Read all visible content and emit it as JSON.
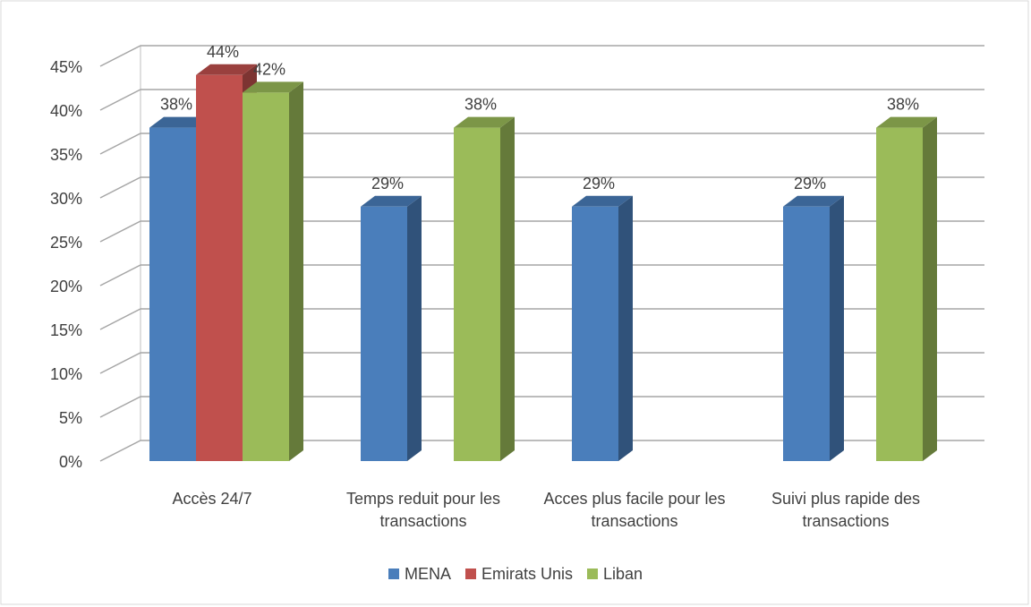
{
  "chart_data": {
    "type": "bar3d",
    "categories": [
      "Accès 24/7",
      "Temps reduit pour les transactions",
      "Acces plus facile pour les transactions",
      "Suivi plus rapide des transactions"
    ],
    "series": [
      {
        "name": "MENA",
        "color": "#4a7ebb",
        "values": [
          38,
          29,
          29,
          29
        ],
        "value_labels": [
          "38%",
          "29%",
          "29%",
          "29%"
        ]
      },
      {
        "name": "Emirats Unis",
        "color": "#c0504d",
        "values": [
          44,
          null,
          null,
          null
        ],
        "value_labels": [
          "44%",
          null,
          null,
          null
        ]
      },
      {
        "name": "Liban",
        "color": "#9bbb59",
        "values": [
          42,
          38,
          null,
          38
        ],
        "value_labels": [
          "42%",
          "38%",
          null,
          "38%"
        ]
      }
    ],
    "ylim": [
      0,
      45
    ],
    "yticks": [
      {
        "value": 0,
        "label": "0%"
      },
      {
        "value": 5,
        "label": "5%"
      },
      {
        "value": 10,
        "label": "10%"
      },
      {
        "value": 15,
        "label": "15%"
      },
      {
        "value": 20,
        "label": "20%"
      },
      {
        "value": 25,
        "label": "25%"
      },
      {
        "value": 30,
        "label": "30%"
      },
      {
        "value": 35,
        "label": "35%"
      },
      {
        "value": 40,
        "label": "40%"
      },
      {
        "value": 45,
        "label": "45%"
      }
    ],
    "grid": true,
    "legend": "bottom"
  }
}
